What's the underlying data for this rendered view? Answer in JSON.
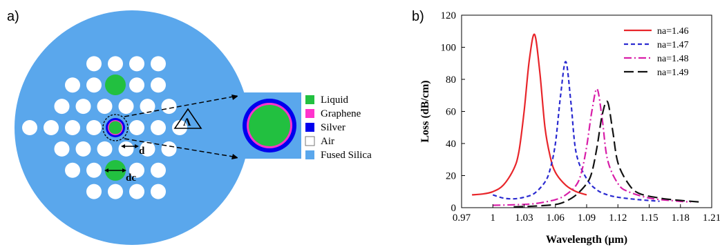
{
  "panel_a": {
    "label": "a)",
    "symbols": {
      "pitch": "Λ",
      "hole_diameter": "d",
      "core_diameter": "dc"
    },
    "legend": [
      {
        "label": "Liquid",
        "color": "#22c040"
      },
      {
        "label": "Graphene",
        "color": "#ff33cc"
      },
      {
        "label": "Silver",
        "color": "#0000ee"
      },
      {
        "label": "Air",
        "color": "#ffffff"
      },
      {
        "label": "Fused Silica",
        "color": "#5aa7ec"
      }
    ]
  },
  "panel_b": {
    "label": "b)"
  },
  "chart_data": {
    "type": "line",
    "title": "",
    "xlabel": "Wavelength (µm)",
    "ylabel": "Loss (dB/cm)",
    "xlim": [
      0.97,
      1.21
    ],
    "ylim": [
      0,
      120
    ],
    "xticks": [
      "0.97",
      "1",
      "1.03",
      "1.06",
      "1.09",
      "1.12",
      "1.15",
      "1.18",
      "1.21"
    ],
    "yticks": [
      "0",
      "20",
      "40",
      "60",
      "80",
      "100",
      "120"
    ],
    "legend_position": "top-right",
    "grid": false,
    "series": [
      {
        "name": "na=1.46",
        "color": "#e8252a",
        "dash": "",
        "x": [
          0.98,
          0.99,
          1.0,
          1.01,
          1.02,
          1.025,
          1.03,
          1.035,
          1.04,
          1.045,
          1.05,
          1.055,
          1.06,
          1.07,
          1.08,
          1.09
        ],
        "y": [
          8,
          8.5,
          10,
          14,
          24,
          35,
          60,
          92,
          108,
          85,
          50,
          32,
          22,
          14,
          10,
          8
        ]
      },
      {
        "name": "na=1.47",
        "color": "#2a2ad0",
        "dash": "6,4",
        "x": [
          1.0,
          1.01,
          1.02,
          1.03,
          1.04,
          1.05,
          1.055,
          1.06,
          1.065,
          1.07,
          1.075,
          1.08,
          1.09,
          1.1,
          1.11,
          1.12,
          1.14,
          1.16
        ],
        "y": [
          8,
          6,
          5.5,
          6.5,
          9,
          16,
          24,
          40,
          70,
          91,
          65,
          34,
          18,
          11,
          8,
          6.5,
          5,
          4
        ]
      },
      {
        "name": "na=1.48",
        "color": "#d81ea8",
        "dash": "11,4,2,4",
        "x": [
          1.0,
          1.02,
          1.04,
          1.06,
          1.07,
          1.08,
          1.085,
          1.09,
          1.095,
          1.1,
          1.105,
          1.11,
          1.12,
          1.13,
          1.15,
          1.17,
          1.19
        ],
        "y": [
          1.5,
          1.8,
          2.5,
          5,
          8,
          14,
          22,
          38,
          60,
          74,
          55,
          30,
          15,
          10,
          6,
          4.5,
          3.5
        ]
      },
      {
        "name": "na=1.49",
        "color": "#111111",
        "dash": "14,6",
        "x": [
          1.02,
          1.04,
          1.06,
          1.07,
          1.08,
          1.09,
          1.095,
          1.1,
          1.105,
          1.11,
          1.115,
          1.12,
          1.13,
          1.14,
          1.16,
          1.18,
          1.2
        ],
        "y": [
          0.5,
          1,
          2,
          4,
          8,
          15,
          22,
          38,
          58,
          66,
          48,
          28,
          15,
          9,
          6,
          4.5,
          3.5
        ]
      }
    ]
  }
}
